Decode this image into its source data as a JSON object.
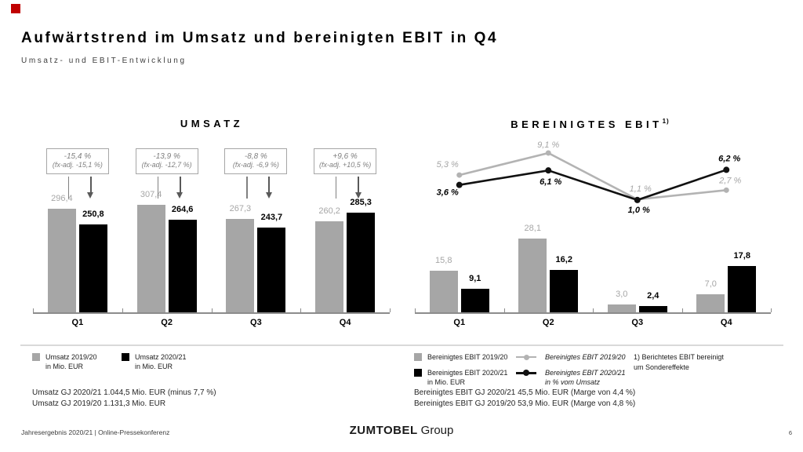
{
  "page": {
    "title": "Aufwärtstrend im Umsatz und bereinigten EBIT in Q4",
    "subtitle": "Umsatz- und EBIT-Entwicklung",
    "accent_red": "#c00000"
  },
  "chart_data": [
    {
      "id": "umsatz",
      "type": "bar",
      "title": "UMSATZ",
      "categories": [
        "Q1",
        "Q2",
        "Q3",
        "Q4"
      ],
      "series": [
        {
          "name": "Umsatz 2019/20 in Mio. EUR",
          "color": "#a6a6a6",
          "values": [
            296.4,
            307.4,
            267.3,
            260.2
          ],
          "labels": [
            "296,4",
            "307,4",
            "267,3",
            "260,2"
          ]
        },
        {
          "name": "Umsatz 2020/21 in Mio. EUR",
          "color": "#000000",
          "values": [
            250.8,
            264.6,
            243.7,
            285.3
          ],
          "labels": [
            "250,8",
            "264,6",
            "243,7",
            "285,3"
          ]
        }
      ],
      "callouts": [
        {
          "line1": "-15,4 %",
          "line2": "(fx-adj. -15,1 %)"
        },
        {
          "line1": "-13,9 %",
          "line2": "(fx-adj. -12,7 %)"
        },
        {
          "line1": "-8,8 %",
          "line2": "(fx-adj. -6,9 %)"
        },
        {
          "line1": "+9,6 %",
          "line2": "(fx-adj. +10,5 %)"
        }
      ],
      "ylim": [
        0,
        320
      ],
      "grid": false,
      "legend_position": "bottom"
    },
    {
      "id": "ebit",
      "type": "bar+line",
      "title": "BEREINIGTES EBIT",
      "title_sup": "1)",
      "categories": [
        "Q1",
        "Q2",
        "Q3",
        "Q4"
      ],
      "series": [
        {
          "name": "Bereinigtes EBIT 2019/20",
          "color": "#a6a6a6",
          "values": [
            15.8,
            28.1,
            3.0,
            7.0
          ],
          "labels": [
            "15,8",
            "28,1",
            "3,0",
            "7,0"
          ]
        },
        {
          "name": "Bereinigtes EBIT 2020/21 in Mio. EUR",
          "color": "#000000",
          "values": [
            9.1,
            16.2,
            2.4,
            17.8
          ],
          "labels": [
            "9,1",
            "16,2",
            "2,4",
            "17,8"
          ]
        }
      ],
      "line_series": [
        {
          "name": "Bereinigtes EBIT 2019/20 in % vom Umsatz",
          "color": "#b3b3b3",
          "values": [
            5.3,
            9.1,
            1.1,
            2.7
          ],
          "labels": [
            "5,3 %",
            "9,1 %",
            "1,1 %",
            "2,7 %"
          ]
        },
        {
          "name": "Bereinigtes EBIT 2020/21 in % vom Umsatz",
          "color": "#111111",
          "values": [
            3.6,
            6.1,
            1.0,
            6.2
          ],
          "labels": [
            "3,6 %",
            "6,1 %",
            "1,0 %",
            "6,2 %"
          ]
        }
      ],
      "ylim_bars": [
        0,
        30
      ],
      "grid": false,
      "legend_position": "bottom"
    }
  ],
  "umsatz_legend": {
    "items": [
      {
        "line1": "Umsatz 2019/20",
        "line2": "in Mio. EUR"
      },
      {
        "line1": "Umsatz 2020/21",
        "line2": "in Mio. EUR"
      }
    ],
    "summary1": "Umsatz GJ 2020/21 1.044,5 Mio. EUR (minus 7,7 %)",
    "summary2": "Umsatz GJ 2019/20 1.131,3 Mio. EUR"
  },
  "ebit_legend": {
    "bar_items": [
      {
        "line1": "Bereinigtes EBIT 2019/20",
        "line2": ""
      },
      {
        "line1": "Bereinigtes EBIT 2020/21",
        "line2": "in Mio. EUR"
      }
    ],
    "line_items": [
      {
        "line1": "Bereinigtes EBIT 2019/20",
        "line2": ""
      },
      {
        "line1": "Bereinigtes EBIT 2020/21",
        "line2": "in % vom Umsatz"
      }
    ],
    "footnote_line1": "1) Berichtetes EBIT bereinigt",
    "footnote_line2": "um Sondereffekte",
    "summary1": "Bereinigtes EBIT GJ 2020/21 45,5 Mio. EUR (Marge von 4,4 %)",
    "summary2": "Bereinigtes EBIT GJ 2019/20 53,9 Mio. EUR (Marge von 4,8 %)"
  },
  "footer": {
    "left": "Jahresergebnis 2020/21 | Online-Pressekonferenz",
    "brand_bold": "ZUMTOBEL",
    "brand_light": "Group",
    "page_number": "6"
  }
}
